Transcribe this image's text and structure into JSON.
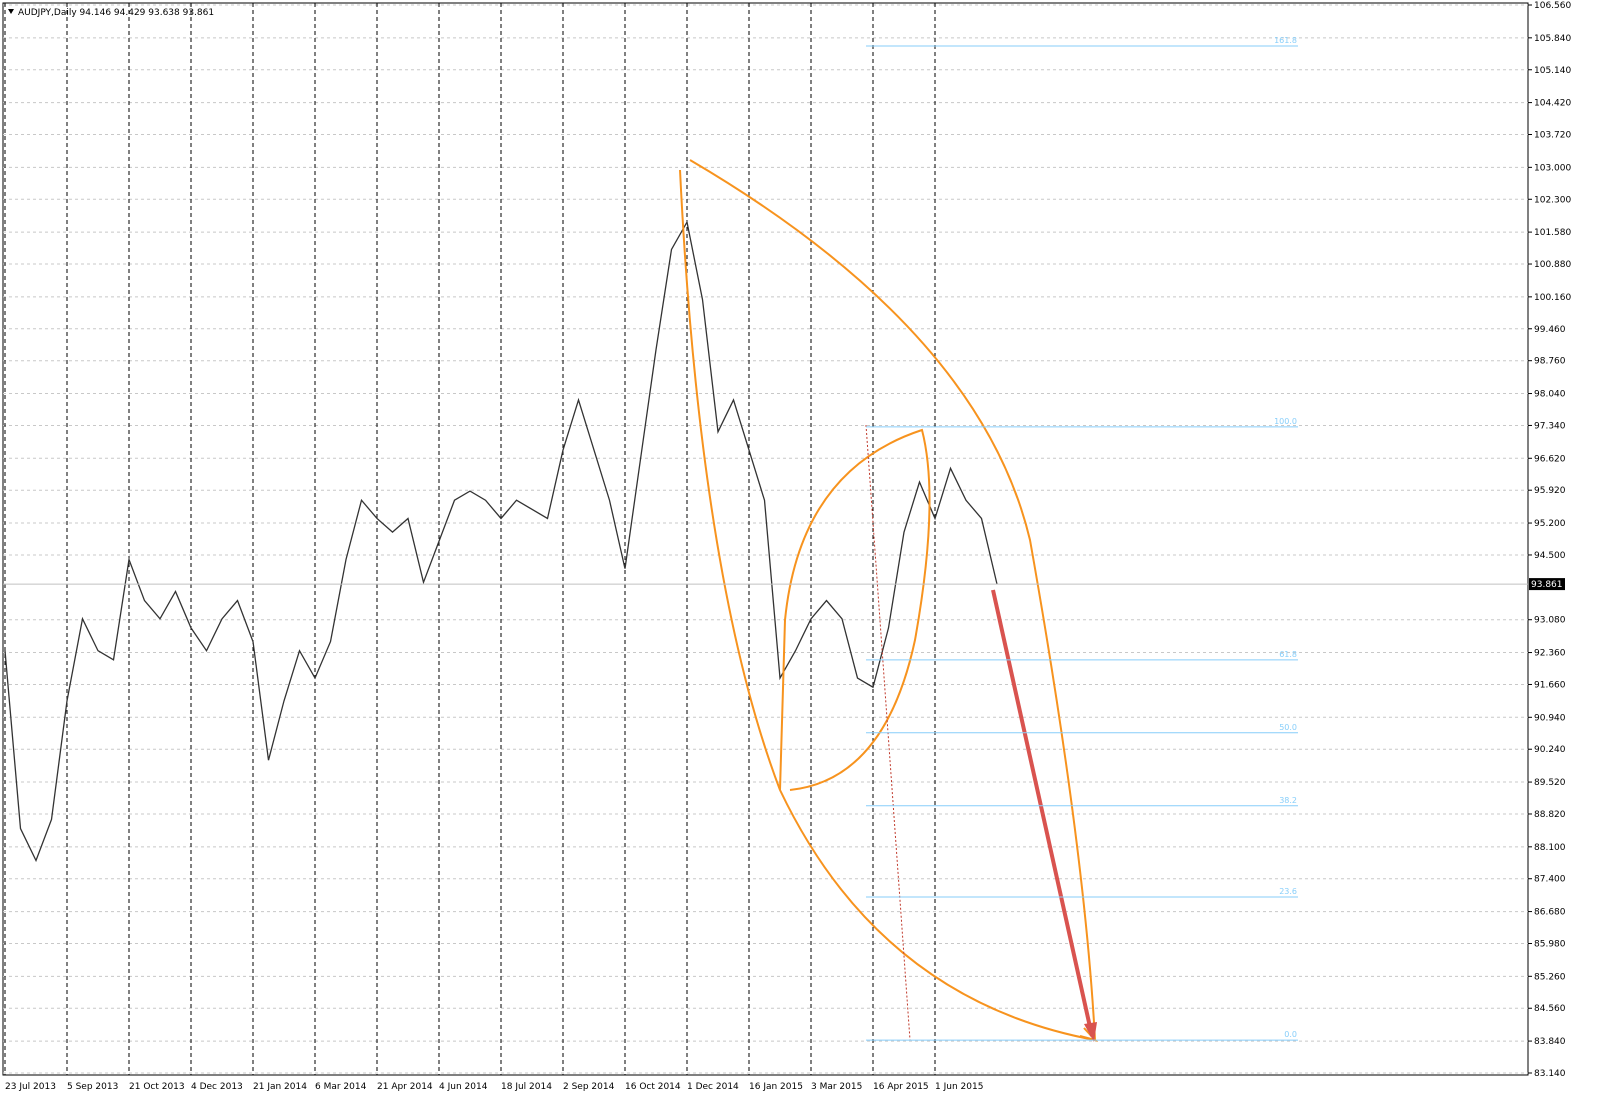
{
  "chart_data": {
    "type": "line",
    "title": "AUDJPY,Daily  94.146 94.429 93.638 93.861",
    "last_price_label": "93.861",
    "last_price": 93.861,
    "categories": [
      "23 Jul 2013",
      null,
      null,
      null,
      "5 Sep 2013",
      null,
      null,
      null,
      "21 Oct 2013",
      null,
      null,
      null,
      "4 Dec 2013",
      null,
      null,
      null,
      "21 Jan 2014",
      null,
      null,
      null,
      "6 Mar 2014",
      null,
      null,
      null,
      "21 Apr 2014",
      null,
      null,
      null,
      "4 Jun 2014",
      null,
      null,
      null,
      "18 Jul 2014",
      null,
      null,
      null,
      "2 Sep 2014",
      null,
      null,
      null,
      "16 Oct 2014",
      null,
      null,
      null,
      "1 Dec 2014",
      null,
      null,
      null,
      "16 Jan 2015",
      null,
      null,
      null,
      "3 Mar 2015",
      null,
      null,
      null,
      "16 Apr 2015",
      null,
      null,
      null,
      "1 Jun 2015",
      null,
      null,
      null,
      null
    ],
    "series": [
      {
        "name": "AUDJPY",
        "color": "#333333",
        "values": [
          92.4,
          88.5,
          87.8,
          88.7,
          91.3,
          93.1,
          92.4,
          92.2,
          94.4,
          93.5,
          93.1,
          93.7,
          92.9,
          92.4,
          93.1,
          93.5,
          92.6,
          90.0,
          91.3,
          92.4,
          91.8,
          92.6,
          94.4,
          95.7,
          95.3,
          95.0,
          95.3,
          93.9,
          94.8,
          95.7,
          95.9,
          95.7,
          95.3,
          95.7,
          95.5,
          95.3,
          96.8,
          97.9,
          96.8,
          95.7,
          94.2,
          96.6,
          99.0,
          101.2,
          101.8,
          100.1,
          97.2,
          97.9,
          96.8,
          95.7,
          91.8,
          92.4,
          93.1,
          93.5,
          93.1,
          91.8,
          91.6,
          92.9,
          95.0,
          96.1,
          95.3,
          96.4,
          95.7,
          95.3,
          93.861
        ]
      }
    ],
    "ylim": [
      83.14,
      106.56
    ],
    "yticks": [
      {
        "value": 83.14,
        "label": "83.140"
      },
      {
        "value": 83.84,
        "label": "83.840"
      },
      {
        "value": 84.56,
        "label": "84.560"
      },
      {
        "value": 85.26,
        "label": "85.260"
      },
      {
        "value": 85.98,
        "label": "85.980"
      },
      {
        "value": 86.68,
        "label": "86.680"
      },
      {
        "value": 87.4,
        "label": "87.400"
      },
      {
        "value": 88.1,
        "label": "88.100"
      },
      {
        "value": 88.82,
        "label": "88.820"
      },
      {
        "value": 89.52,
        "label": "89.520"
      },
      {
        "value": 90.24,
        "label": "90.240"
      },
      {
        "value": 90.94,
        "label": "90.940"
      },
      {
        "value": 91.66,
        "label": "91.660"
      },
      {
        "value": 92.36,
        "label": "92.360"
      },
      {
        "value": 93.08,
        "label": "93.080"
      },
      {
        "value": 94.5,
        "label": "94.500"
      },
      {
        "value": 95.2,
        "label": "95.200"
      },
      {
        "value": 95.92,
        "label": "95.920"
      },
      {
        "value": 96.62,
        "label": "96.620"
      },
      {
        "value": 97.34,
        "label": "97.340"
      },
      {
        "value": 98.04,
        "label": "98.040"
      },
      {
        "value": 98.76,
        "label": "98.760"
      },
      {
        "value": 99.46,
        "label": "99.460"
      },
      {
        "value": 100.16,
        "label": "100.160"
      },
      {
        "value": 100.88,
        "label": "100.880"
      },
      {
        "value": 101.58,
        "label": "101.580"
      },
      {
        "value": 102.3,
        "label": "102.300"
      },
      {
        "value": 103.0,
        "label": "103.000"
      },
      {
        "value": 103.72,
        "label": "103.720"
      },
      {
        "value": 104.42,
        "label": "104.420"
      },
      {
        "value": 105.14,
        "label": "105.140"
      },
      {
        "value": 105.84,
        "label": "105.840"
      },
      {
        "value": 106.56,
        "label": "106.560"
      }
    ],
    "grid": true,
    "fib_levels": [
      {
        "label": "161.8",
        "value": 105.66
      },
      {
        "label": "100.0",
        "value": 97.31
      },
      {
        "label": "61.8",
        "value": 92.2
      },
      {
        "label": "50.0",
        "value": 90.6
      },
      {
        "label": "38.2",
        "value": 89.0
      },
      {
        "label": "23.6",
        "value": 87.0
      },
      {
        "label": "0.0",
        "value": 83.86
      }
    ]
  }
}
